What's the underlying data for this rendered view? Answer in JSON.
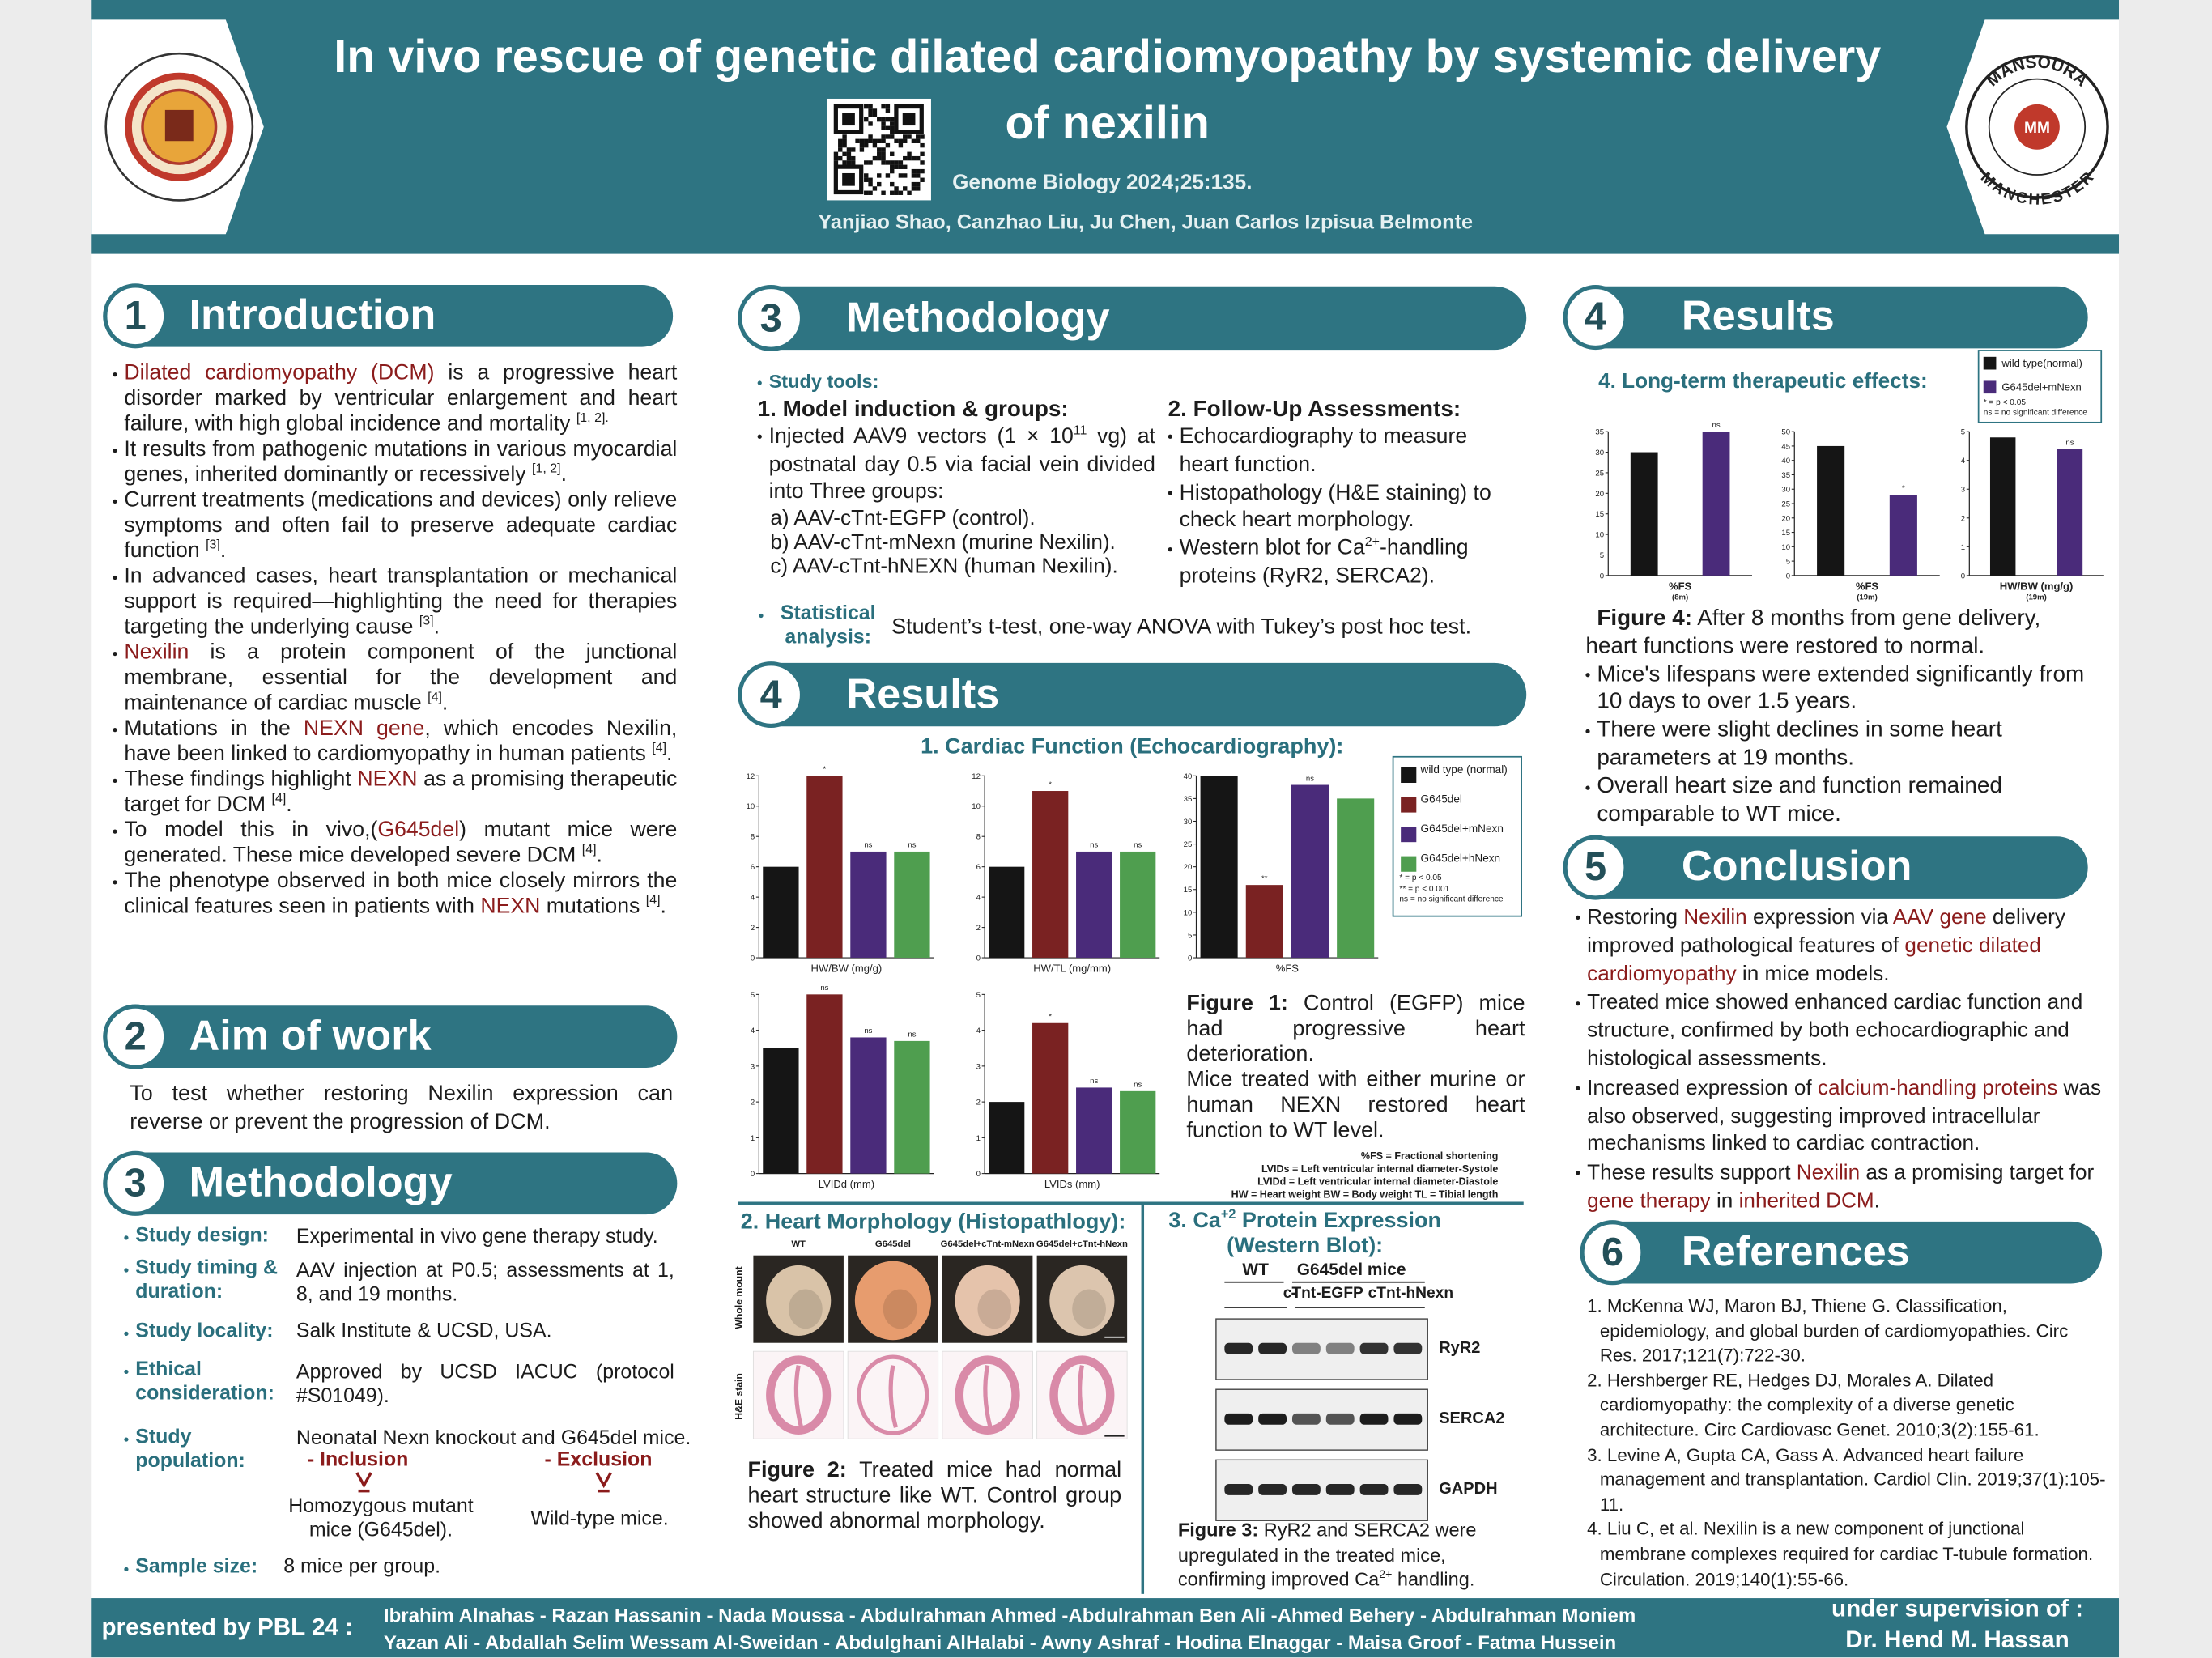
{
  "header": {
    "title_lines": [
      "In vivo rescue of genetic dilated cardiomyopathy by systemic delivery",
      "of nexilin"
    ],
    "journal": "Genome Biology 2024;25:135.",
    "authors": "Yanjiao Shao, Canzhao Liu, Ju Chen, Juan Carlos Izpisua Belmonte",
    "right_logo": {
      "top": "MANSOURA",
      "bottom": "MANCHESTER",
      "center": "MM"
    }
  },
  "introduction": {
    "number": "1",
    "title": "Introduction",
    "paragraphs": [
      [
        {
          "hl": "Dilated cardiomyopathy (DCM)"
        },
        " is a progressive heart disorder marked by ventricular enlargement and heart failure, with high global incidence and mortality ",
        {
          "sup": "[1, 2]."
        }
      ],
      [
        "It results from pathogenic mutations in various myocardial genes, inherited dominantly or recessively ",
        {
          "sup": "[1, 2]"
        },
        "."
      ],
      [
        "Current treatments (medications and devices) only relieve symptoms and often fail to preserve adequate cardiac function ",
        {
          "sup": "[3]"
        },
        "."
      ],
      [
        "In advanced cases, heart transplantation or mechanical support is required—highlighting the need for therapies targeting the underlying cause ",
        {
          "sup": "[3]"
        },
        "."
      ],
      [
        {
          "hl": "Nexilin"
        },
        " is a protein component of the junctional membrane, essential for the development and maintenance of cardiac muscle ",
        {
          "sup": "[4]"
        },
        "."
      ],
      [
        "Mutations in the ",
        {
          "hl": "NEXN gene"
        },
        ", which encodes Nexilin, have been linked to cardiomyopathy in human patients ",
        {
          "sup": "[4]"
        },
        "."
      ],
      [
        "These findings highlight ",
        {
          "hl": "NEXN"
        },
        " as a promising therapeutic target for DCM ",
        {
          "sup": "[4]"
        },
        "."
      ],
      [
        "To model this in vivo,(",
        {
          "hl": "G645del"
        },
        ") mutant mice were generated. These mice developed severe DCM ",
        {
          "sup": "[4]"
        },
        "."
      ],
      [
        "The phenotype observed in both mice closely mirrors the clinical features seen in patients with ",
        {
          "hl": "NEXN"
        },
        " mutations ",
        {
          "sup": "[4]"
        },
        "."
      ]
    ]
  },
  "aim": {
    "number": "2",
    "title": "Aim of work",
    "text": "To test whether restoring Nexilin expression can reverse or prevent the progression of DCM."
  },
  "methodology": {
    "number": "3",
    "title": "Methodology",
    "rows": [
      {
        "label": "Study design:",
        "value": "Experimental in vivo gene therapy study."
      },
      {
        "label": "Study timing & duration:",
        "value": "AAV injection at P0.5; assessments at 1, 8, and 19 months."
      },
      {
        "label": "Study locality:",
        "value": "Salk Institute & UCSD, USA."
      },
      {
        "label": "Ethical consideration:",
        "value": "Approved by UCSD IACUC (protocol #S01049)."
      },
      {
        "label": "Study population:",
        "value": "Neonatal Nexn knockout and G645del mice."
      },
      {
        "label": "Sample size:",
        "value": "8 mice per group."
      }
    ],
    "inclusion": {
      "label": "- Inclusion",
      "text": "Homozygous mutant mice (G645del)."
    },
    "exclusion": {
      "label": "- Exclusion",
      "text": "Wild-type mice."
    }
  },
  "methodology_tools": {
    "number": "3",
    "title": "Methodology",
    "label": "Study tools:",
    "model": {
      "title": "1. Model induction & groups:",
      "bullets": [
        [
          "Injected AAV9 vectors (1 × 10",
          {
            "sup": "11"
          },
          " vg) at postnatal day 0.5 via facial vein divided into Three groups:"
        ]
      ],
      "groups": [
        "a) AAV-cTnt-EGFP (control).",
        "b) AAV-cTnt-mNexn (murine Nexilin).",
        "c) AAV-cTnt-hNEXN (human Nexilin)."
      ]
    },
    "followup": {
      "title": "2. Follow-Up Assessments:",
      "bullets": [
        "Echocardiography to measure heart function.",
        "Histopathology (H&E staining) to check heart morphology.",
        [
          "Western blot for Ca",
          {
            "sup": "2+"
          },
          "-handling proteins (RyR2, SERCA2)."
        ]
      ]
    },
    "statistics": {
      "label": "Statistical analysis:",
      "value": "Student’s t-test, one-way ANOVA with Tukey’s post hoc test."
    }
  },
  "results": {
    "number": "4",
    "title": "Results",
    "figure1": {
      "title": "1. Cardiac Function (Echocardiography):",
      "legend": [
        {
          "name": "wild type (normal)",
          "color": "#151515"
        },
        {
          "name": "G645del",
          "color": "#7a2222"
        },
        {
          "name": "G645del+mNexn",
          "color": "#4a2b7a"
        },
        {
          "name": "G645del+hNexn",
          "color": "#4f9e4f"
        }
      ],
      "notes": [
        "* = p < 0.05",
        "** = p < 0.001",
        "ns = no significant difference"
      ],
      "caption": [
        [
          {
            "bold": "Figure 1:"
          },
          " Control (EGFP) mice had progressive heart deterioration."
        ],
        "Mice treated with either murine or human NEXN restored heart function to WT level."
      ],
      "abbreviations": [
        "%FS  = Fractional shortening",
        "LVIDs = Left ventricular internal diameter-Systole",
        "LVIDd = Left ventricular internal diameter-Diastole",
        "HW = Heart weight  BW = Body weight  TL = Tibial length"
      ]
    },
    "figure2": {
      "title": "2. Heart Morphology (Histopathlogy):",
      "columns": [
        "WT",
        "G645del",
        "G645del+cTnt-mNexn",
        "G645del+cTnt-hNexn"
      ],
      "rows": [
        "Whole mount",
        "H&E stain"
      ],
      "caption": [
        {
          "bold": "Figure 2:"
        },
        " Treated mice had normal heart structure like WT. Control group showed abnormal morphology."
      ]
    },
    "figure3": {
      "title": [
        "3. Ca",
        {
          "sup": "+2"
        },
        " Protein Expression (Western Blot):"
      ],
      "group_headers": [
        "WT",
        "G645del mice"
      ],
      "lane_headers": [
        "-",
        "cTnt-EGFP",
        "cTnt-hNexn"
      ],
      "proteins": [
        "RyR2",
        "SERCA2",
        "GAPDH"
      ],
      "caption": [
        {
          "bold": "Figure 3:"
        },
        " RyR2 and SERCA2 were upregulated in the treated mice, confirming improved Ca",
        {
          "sup": "2+"
        },
        " handling."
      ]
    }
  },
  "results_long_term": {
    "number": "4",
    "title": "Results",
    "subtitle": "4. Long-term therapeutic effects:",
    "legend": [
      {
        "name": "wild type(normal)",
        "color": "#151515"
      },
      {
        "name": "G645del+mNexn",
        "color": "#4a2b7a"
      }
    ],
    "notes": [
      "* = p < 0.05",
      "ns = no significant difference"
    ],
    "caption": [
      {
        "bold": "Figure 4:"
      },
      " After 8 months from gene delivery, heart functions were restored to normal."
    ],
    "bullets": [
      "Mice's lifespans were extended significantly from 10 days to over 1.5 years.",
      "There were slight declines in some heart parameters at 19 months.",
      "Overall heart size and function remained comparable to WT mice."
    ]
  },
  "conclusion": {
    "number": "5",
    "title": "Conclusion",
    "paragraphs": [
      [
        "Restoring ",
        {
          "hl": "Nexilin"
        },
        " expression via ",
        {
          "hl": "AAV gene"
        },
        " delivery improved pathological features of ",
        {
          "hl": "genetic dilated cardiomyopathy"
        },
        " in mice models."
      ],
      "Treated mice showed enhanced cardiac function and structure, confirmed by both echocardiographic and histological assessments.",
      [
        "Increased expression of ",
        {
          "hl": "calcium-handling proteins"
        },
        " was also observed, suggesting improved intracellular mechanisms linked to cardiac contraction."
      ],
      [
        "These results support ",
        {
          "hl": "Nexilin"
        },
        " as a promising target for ",
        {
          "hl": "gene therapy"
        },
        " in ",
        {
          "hl": "inherited DCM"
        },
        "."
      ]
    ]
  },
  "references": {
    "number": "6",
    "title": "References",
    "items": [
      "1. McKenna WJ, Maron BJ, Thiene G. Classification, epidemiology, and global burden of cardiomyopathies. Circ Res. 2017;121(7):722-30.",
      "2. Hershberger RE, Hedges DJ, Morales A. Dilated cardiomyopathy: the complexity of a diverse genetic architecture. Circ Cardiovasc Genet. 2010;3(2):155-61.",
      "3. Levine A, Gupta CA, Gass A. Advanced heart failure management and transplantation. Cardiol Clin. 2019;37(1):105-11.",
      "4. Liu C, et al. Nexilin is a new component of junctional membrane complexes required for cardiac T-tubule formation. Circulation. 2019;140(1):55-66."
    ]
  },
  "footer": {
    "presented": "presented by PBL 24 :",
    "names": [
      "Ibrahim Alnahas - Razan Hassanin - Nada Moussa - Abdulrahman Ahmed -Abdulrahman Ben Ali -Ahmed Behery - Abdulrahman Moniem",
      "Yazan Ali - Abdallah Selim  Wessam Al-Sweidan - Abdulghani AlHalabi - Awny Ashraf - Hodina Elnaggar - Maisa Groof - Fatma Hussein"
    ],
    "supervision": "under supervision of :",
    "supervisor": "Dr. Hend M. Hassan"
  },
  "chart_data": [
    {
      "type": "bar",
      "xlabel": "HW/BW (mg/g)",
      "values": [
        6,
        12,
        7,
        7
      ],
      "annotations": [
        null,
        "*",
        "ns",
        "ns"
      ],
      "colors": [
        "#151515",
        "#7a2222",
        "#4a2b7a",
        "#4f9e4f"
      ],
      "ylim": [
        0,
        12
      ],
      "yticks": [
        0,
        2,
        4,
        6,
        8,
        10,
        12
      ]
    },
    {
      "type": "bar",
      "xlabel": "HW/TL (mg/mm)",
      "values": [
        6,
        11,
        7,
        7
      ],
      "annotations": [
        null,
        "*",
        "ns",
        "ns"
      ],
      "colors": [
        "#151515",
        "#7a2222",
        "#4a2b7a",
        "#4f9e4f"
      ],
      "ylim": [
        0,
        12
      ],
      "yticks": [
        0,
        2,
        4,
        6,
        8,
        10,
        12
      ]
    },
    {
      "type": "bar",
      "xlabel": "%FS",
      "values": [
        40,
        16,
        38,
        35
      ],
      "annotations": [
        null,
        "**",
        "ns",
        null
      ],
      "colors": [
        "#151515",
        "#7a2222",
        "#4a2b7a",
        "#4f9e4f"
      ],
      "ylim": [
        0,
        40
      ],
      "yticks": [
        0,
        5,
        10,
        15,
        20,
        25,
        30,
        35,
        40
      ]
    },
    {
      "type": "bar",
      "xlabel": "LVIDd (mm)",
      "values": [
        3.5,
        5,
        3.8,
        3.7
      ],
      "annotations": [
        null,
        "ns",
        "ns",
        "ns"
      ],
      "colors": [
        "#151515",
        "#7a2222",
        "#4a2b7a",
        "#4f9e4f"
      ],
      "ylim": [
        0,
        5
      ],
      "yticks": [
        0,
        1,
        2,
        3,
        4,
        5
      ]
    },
    {
      "type": "bar",
      "xlabel": "LVIDs (mm)",
      "values": [
        2,
        4.2,
        2.4,
        2.3
      ],
      "annotations": [
        null,
        "*",
        "ns",
        "ns"
      ],
      "colors": [
        "#151515",
        "#7a2222",
        "#4a2b7a",
        "#4f9e4f"
      ],
      "ylim": [
        0,
        5
      ],
      "yticks": [
        0,
        1,
        2,
        3,
        4,
        5
      ]
    },
    {
      "type": "bar",
      "xlabel": "%FS",
      "sublabel": "(8m)",
      "values": [
        30,
        35
      ],
      "annotations": [
        null,
        "ns"
      ],
      "colors": [
        "#151515",
        "#4a2b7a"
      ],
      "ylim": [
        0,
        35
      ],
      "yticks": [
        0,
        5,
        10,
        15,
        20,
        25,
        30,
        35
      ]
    },
    {
      "type": "bar",
      "xlabel": "%FS",
      "sublabel": "(19m)",
      "values": [
        45,
        28
      ],
      "annotations": [
        null,
        "*"
      ],
      "colors": [
        "#151515",
        "#4a2b7a"
      ],
      "ylim": [
        0,
        50
      ],
      "yticks": [
        0,
        5,
        10,
        15,
        20,
        25,
        30,
        35,
        40,
        45,
        50
      ]
    },
    {
      "type": "bar",
      "xlabel": "HW/BW (mg/g)",
      "sublabel": "(19m)",
      "values": [
        4.8,
        4.4
      ],
      "annotations": [
        null,
        "ns"
      ],
      "colors": [
        "#151515",
        "#4a2b7a"
      ],
      "ylim": [
        0,
        5
      ],
      "yticks": [
        0,
        1,
        2,
        3,
        4,
        5
      ]
    }
  ]
}
